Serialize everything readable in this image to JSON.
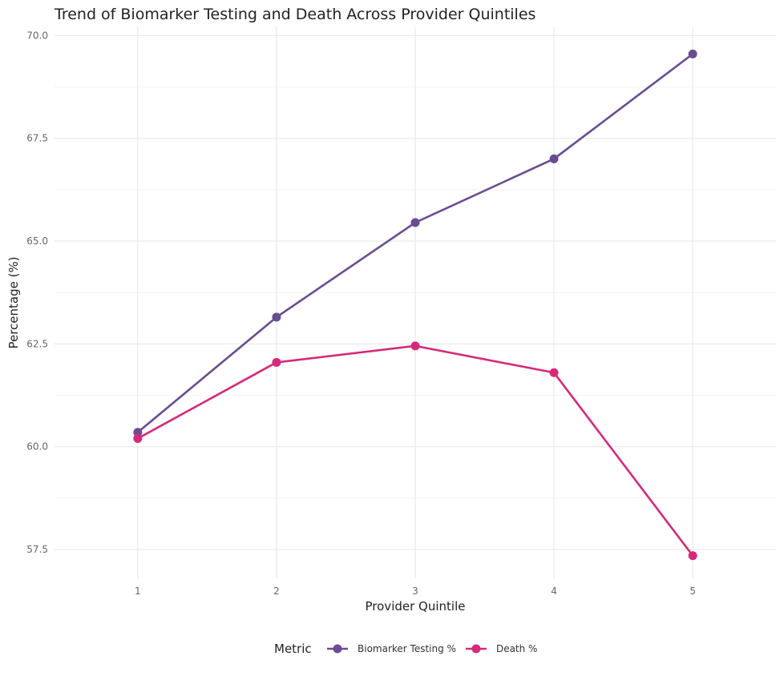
{
  "chart_data": {
    "type": "line",
    "title": "Trend of Biomarker Testing and Death Across Provider Quintiles",
    "xlabel": "Provider Quintile",
    "ylabel": "Percentage (%)",
    "x": [
      1,
      2,
      3,
      4,
      5
    ],
    "x_tick_labels": [
      "1",
      "2",
      "3",
      "4",
      "5"
    ],
    "xlim": [
      0.4,
      5.6
    ],
    "ylim": [
      56.8,
      70.2
    ],
    "y_ticks": [
      57.5,
      60.0,
      62.5,
      65.0,
      67.5,
      70.0
    ],
    "y_tick_labels": [
      "57.5",
      "60.0",
      "62.5",
      "65.0",
      "67.5",
      "70.0"
    ],
    "grid": true,
    "legend": {
      "title": "Metric",
      "position": "bottom"
    },
    "series": [
      {
        "name": "Biomarker Testing %",
        "color": "#6a4c93",
        "values": [
          60.35,
          63.15,
          65.45,
          67.0,
          69.55
        ]
      },
      {
        "name": "Death %",
        "color": "#d6297a",
        "values": [
          60.2,
          62.05,
          62.45,
          61.8,
          57.35
        ]
      }
    ]
  }
}
